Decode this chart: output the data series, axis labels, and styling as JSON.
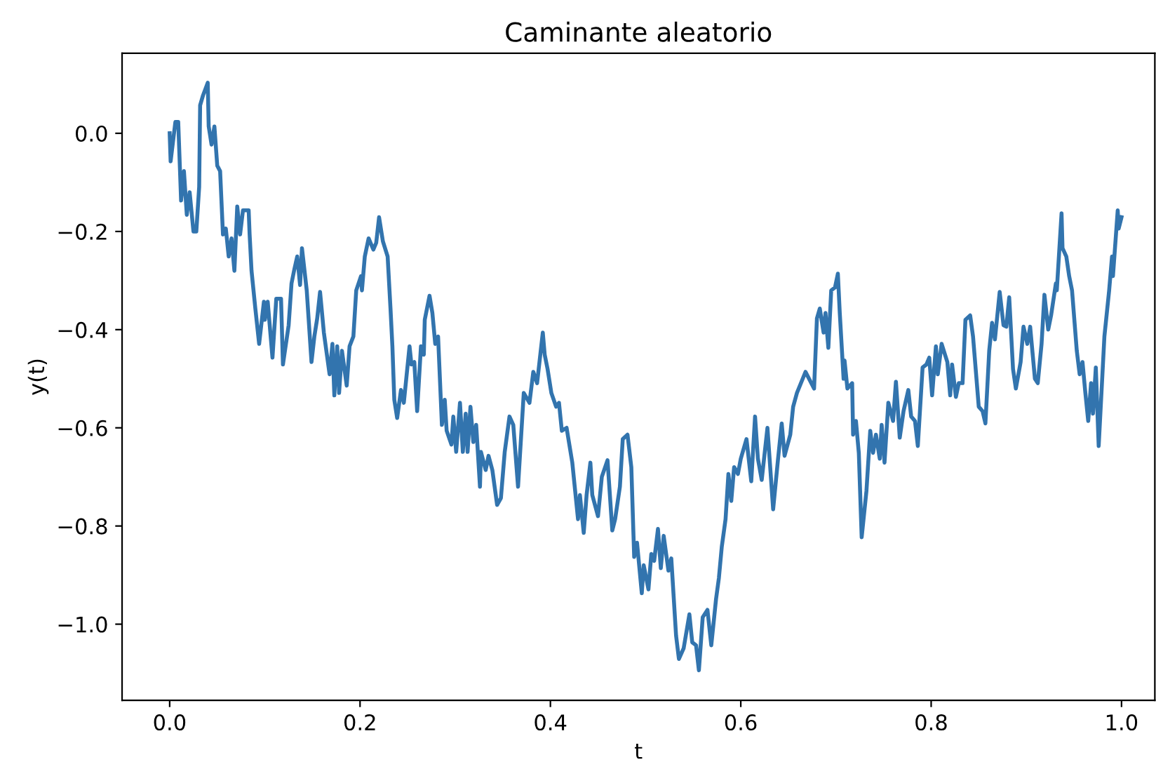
{
  "chart_data": {
    "type": "line",
    "title": "Caminante aleatorio",
    "xlabel": "t",
    "ylabel": "y(t)",
    "xlim": [
      -0.05,
      1.035
    ],
    "ylim": [
      -1.155,
      0.163
    ],
    "xticks": [
      {
        "value": 0.0,
        "label": "0.0"
      },
      {
        "value": 0.2,
        "label": "0.2"
      },
      {
        "value": 0.4,
        "label": "0.4"
      },
      {
        "value": 0.6,
        "label": "0.6"
      },
      {
        "value": 0.8,
        "label": "0.8"
      },
      {
        "value": 1.0,
        "label": "1.0"
      }
    ],
    "yticks": [
      {
        "value": -1.0,
        "label": "−1.0"
      },
      {
        "value": -0.8,
        "label": "−0.8"
      },
      {
        "value": -0.6,
        "label": "−0.6"
      },
      {
        "value": -0.4,
        "label": "−0.4"
      },
      {
        "value": -0.2,
        "label": "−0.2"
      },
      {
        "value": 0.0,
        "label": "0.0"
      }
    ],
    "grid": false,
    "legend": false,
    "marker": "none",
    "line_style": "solid",
    "series": [
      {
        "color": "#3274ae",
        "x": [
          0,
          0.001,
          0.006,
          0.009,
          0.012,
          0.015,
          0.018,
          0.021,
          0.025,
          0.028,
          0.031,
          0.032,
          0.035,
          0.04,
          0.041,
          0.044,
          0.047,
          0.05,
          0.053,
          0.056,
          0.059,
          0.062,
          0.065,
          0.068,
          0.071,
          0.074,
          0.077,
          0.083,
          0.084,
          0.086,
          0.09,
          0.094,
          0.099,
          0.1,
          0.103,
          0.108,
          0.112,
          0.117,
          0.119,
          0.125,
          0.128,
          0.131,
          0.134,
          0.137,
          0.139,
          0.144,
          0.149,
          0.152,
          0.155,
          0.158,
          0.162,
          0.168,
          0.171,
          0.173,
          0.176,
          0.178,
          0.181,
          0.186,
          0.189,
          0.193,
          0.196,
          0.201,
          0.202,
          0.205,
          0.209,
          0.214,
          0.217,
          0.22,
          0.224,
          0.229,
          0.232,
          0.234,
          0.236,
          0.239,
          0.243,
          0.246,
          0.252,
          0.254,
          0.257,
          0.26,
          0.264,
          0.267,
          0.268,
          0.273,
          0.276,
          0.279,
          0.282,
          0.286,
          0.289,
          0.291,
          0.296,
          0.298,
          0.301,
          0.305,
          0.308,
          0.311,
          0.313,
          0.316,
          0.319,
          0.322,
          0.326,
          0.327,
          0.332,
          0.335,
          0.339,
          0.344,
          0.348,
          0.352,
          0.357,
          0.361,
          0.366,
          0.372,
          0.378,
          0.382,
          0.386,
          0.392,
          0.394,
          0.397,
          0.401,
          0.406,
          0.409,
          0.412,
          0.417,
          0.423,
          0.429,
          0.431,
          0.435,
          0.438,
          0.442,
          0.444,
          0.45,
          0.454,
          0.46,
          0.465,
          0.468,
          0.473,
          0.476,
          0.481,
          0.485,
          0.488,
          0.491,
          0.496,
          0.498,
          0.503,
          0.506,
          0.509,
          0.513,
          0.516,
          0.519,
          0.524,
          0.527,
          0.532,
          0.535,
          0.54,
          0.546,
          0.549,
          0.553,
          0.556,
          0.56,
          0.565,
          0.569,
          0.574,
          0.577,
          0.58,
          0.584,
          0.587,
          0.59,
          0.593,
          0.597,
          0.6,
          0.606,
          0.611,
          0.615,
          0.618,
          0.622,
          0.628,
          0.634,
          0.639,
          0.643,
          0.646,
          0.652,
          0.655,
          0.659,
          0.668,
          0.677,
          0.68,
          0.683,
          0.687,
          0.689,
          0.692,
          0.695,
          0.699,
          0.702,
          0.704,
          0.708,
          0.709,
          0.712,
          0.717,
          0.718,
          0.721,
          0.724,
          0.727,
          0.732,
          0.736,
          0.739,
          0.742,
          0.746,
          0.748,
          0.751,
          0.755,
          0.76,
          0.763,
          0.767,
          0.771,
          0.776,
          0.779,
          0.783,
          0.786,
          0.791,
          0.795,
          0.798,
          0.801,
          0.805,
          0.807,
          0.811,
          0.817,
          0.82,
          0.822,
          0.826,
          0.829,
          0.833,
          0.836,
          0.841,
          0.844,
          0.85,
          0.854,
          0.857,
          0.861,
          0.864,
          0.867,
          0.872,
          0.876,
          0.879,
          0.882,
          0.886,
          0.889,
          0.894,
          0.897,
          0.901,
          0.904,
          0.909,
          0.912,
          0.916,
          0.919,
          0.923,
          0.926,
          0.931,
          0.932,
          0.937,
          0.938,
          0.942,
          0.945,
          0.948,
          0.953,
          0.956,
          0.959,
          0.962,
          0.965,
          0.968,
          0.97,
          0.973,
          0.976,
          0.982,
          0.987,
          0.99,
          0.991,
          0.996,
          0.997,
          1.0
        ],
        "values": [
          0,
          -0.057,
          0.023,
          0.023,
          -0.137,
          -0.077,
          -0.166,
          -0.12,
          -0.2,
          -0.2,
          -0.109,
          0.057,
          0.077,
          0.103,
          0.014,
          -0.023,
          0.014,
          -0.066,
          -0.077,
          -0.206,
          -0.194,
          -0.251,
          -0.214,
          -0.28,
          -0.149,
          -0.206,
          -0.157,
          -0.157,
          -0.206,
          -0.28,
          -0.357,
          -0.429,
          -0.343,
          -0.38,
          -0.343,
          -0.457,
          -0.337,
          -0.337,
          -0.471,
          -0.391,
          -0.306,
          -0.277,
          -0.251,
          -0.309,
          -0.234,
          -0.32,
          -0.466,
          -0.414,
          -0.377,
          -0.323,
          -0.406,
          -0.491,
          -0.429,
          -0.534,
          -0.434,
          -0.529,
          -0.443,
          -0.514,
          -0.434,
          -0.414,
          -0.32,
          -0.291,
          -0.32,
          -0.251,
          -0.214,
          -0.237,
          -0.223,
          -0.171,
          -0.22,
          -0.251,
          -0.357,
          -0.434,
          -0.543,
          -0.58,
          -0.523,
          -0.549,
          -0.434,
          -0.471,
          -0.466,
          -0.566,
          -0.434,
          -0.451,
          -0.38,
          -0.331,
          -0.366,
          -0.429,
          -0.414,
          -0.594,
          -0.543,
          -0.606,
          -0.634,
          -0.577,
          -0.649,
          -0.549,
          -0.649,
          -0.571,
          -0.649,
          -0.557,
          -0.629,
          -0.594,
          -0.72,
          -0.649,
          -0.686,
          -0.657,
          -0.686,
          -0.757,
          -0.743,
          -0.649,
          -0.577,
          -0.594,
          -0.72,
          -0.529,
          -0.549,
          -0.486,
          -0.509,
          -0.406,
          -0.451,
          -0.48,
          -0.529,
          -0.557,
          -0.549,
          -0.606,
          -0.6,
          -0.671,
          -0.786,
          -0.737,
          -0.814,
          -0.737,
          -0.671,
          -0.737,
          -0.78,
          -0.7,
          -0.666,
          -0.809,
          -0.786,
          -0.72,
          -0.623,
          -0.614,
          -0.68,
          -0.863,
          -0.834,
          -0.937,
          -0.88,
          -0.929,
          -0.857,
          -0.871,
          -0.806,
          -0.886,
          -0.82,
          -0.891,
          -0.866,
          -1.023,
          -1.071,
          -1.049,
          -0.98,
          -1.037,
          -1.043,
          -1.094,
          -0.986,
          -0.971,
          -1.043,
          -0.949,
          -0.906,
          -0.843,
          -0.786,
          -0.694,
          -0.749,
          -0.68,
          -0.694,
          -0.663,
          -0.623,
          -0.709,
          -0.577,
          -0.663,
          -0.706,
          -0.6,
          -0.766,
          -0.666,
          -0.591,
          -0.657,
          -0.614,
          -0.557,
          -0.529,
          -0.486,
          -0.52,
          -0.377,
          -0.357,
          -0.406,
          -0.366,
          -0.437,
          -0.32,
          -0.314,
          -0.286,
          -0.366,
          -0.5,
          -0.463,
          -0.52,
          -0.509,
          -0.614,
          -0.586,
          -0.651,
          -0.823,
          -0.729,
          -0.606,
          -0.651,
          -0.614,
          -0.663,
          -0.594,
          -0.671,
          -0.549,
          -0.586,
          -0.506,
          -0.62,
          -0.566,
          -0.523,
          -0.577,
          -0.586,
          -0.637,
          -0.477,
          -0.471,
          -0.457,
          -0.534,
          -0.434,
          -0.491,
          -0.429,
          -0.466,
          -0.534,
          -0.471,
          -0.537,
          -0.509,
          -0.509,
          -0.38,
          -0.371,
          -0.414,
          -0.557,
          -0.566,
          -0.591,
          -0.443,
          -0.386,
          -0.42,
          -0.323,
          -0.391,
          -0.394,
          -0.334,
          -0.48,
          -0.52,
          -0.466,
          -0.394,
          -0.429,
          -0.394,
          -0.5,
          -0.509,
          -0.429,
          -0.329,
          -0.4,
          -0.371,
          -0.306,
          -0.32,
          -0.163,
          -0.234,
          -0.251,
          -0.291,
          -0.32,
          -0.443,
          -0.491,
          -0.466,
          -0.529,
          -0.586,
          -0.509,
          -0.571,
          -0.477,
          -0.637,
          -0.414,
          -0.32,
          -0.251,
          -0.291,
          -0.157,
          -0.194,
          -0.171
        ]
      }
    ]
  }
}
